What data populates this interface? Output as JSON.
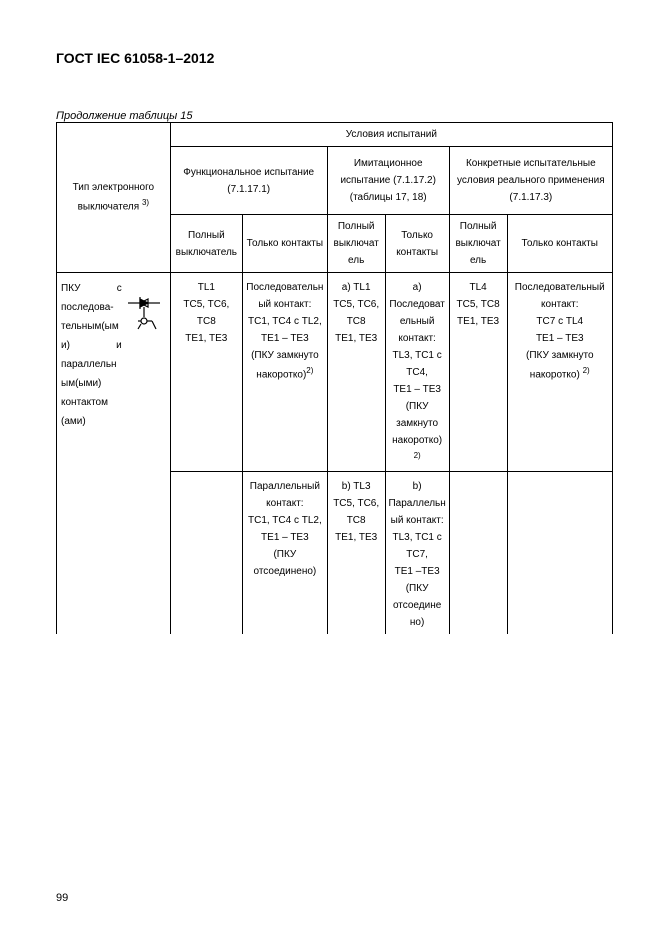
{
  "doc_title": "ГОСТ IEC 61058-1–2012",
  "caption": "Продолжение таблицы 15",
  "page_number": "99",
  "col_widths": {
    "c0": 110,
    "c1": 70,
    "c2": 80,
    "c3": 56,
    "c4": 60,
    "c5": 56,
    "c6": 100
  },
  "headers": {
    "row_header": "Тип электронного выключателя",
    "row_header_sup": "3)",
    "conditions": "Условия испытаний",
    "group1": "Функциональное испытание (7.1.17.1)",
    "group2": "Имитационное испытание (7.1.17.2) (таблицы 17, 18)",
    "group3": "Конкретные испытательные условия реального применения (7.1.17.3)",
    "full_switch": "Полный выключатель",
    "full_switch_small": "Полный выключат ель",
    "contacts_only": "Только контакты"
  },
  "row1": {
    "label_lines": [
      "ПКУ с",
      "последова-",
      "тельным(ым",
      "и) и",
      "параллельн",
      "ым(ыми)",
      "контактом",
      "(ами)"
    ],
    "c1": "TL1\nTC5, TC6, TC8\nTE1, TE3",
    "c2": "Последовательный контакт:\nTC1, TC4 с TL2,\nTE1 – TE3\n(ПКУ замкнуто накоротко)",
    "c2_sup": "2)",
    "c3": "a) TL1\nTC5, TC6, TC8\nTE1, TE3",
    "c4": "a) Последовательный контакт:\nTL3, TC1 с TC4,\nTE1 – TE3\n(ПКУ замкнуто накоротко)",
    "c4_sup": "2)",
    "c5": "TL4\nTC5, TC8\nTE1, TE3",
    "c6": "Последовательный контакт:\nTC7 с TL4\nTE1 – TE3\n(ПКУ замкнуто накоротко)",
    "c6_sup": "2)"
  },
  "row2": {
    "c2": "Параллельный контакт:\nTC1, TC4 с TL2,\nTE1 – TE3\n(ПКУ отсоединено)",
    "c3": "b) TL3\nTC5, TC6, TC8\nTE1, TE3",
    "c4": "b) Параллельный контакт:\nTL3, TC1 с TC7,\nTE1 –TE3\n(ПКУ отсоедине но)"
  }
}
